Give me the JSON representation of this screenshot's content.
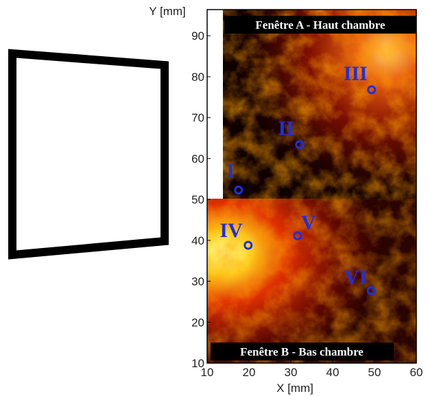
{
  "chart_data": {
    "type": "scatter",
    "x_label": "X [mm]",
    "y_label": "Y [mm]",
    "annotations": [
      "Fenêtre A - Haut chambre",
      "Fenêtre B - Bas chambre"
    ],
    "labels": [
      "I",
      "II",
      "III",
      "IV",
      "V",
      "VI"
    ],
    "x": [
      17.5,
      32.1,
      49.3,
      19.8,
      31.6,
      49.2
    ],
    "values": [
      52.3,
      63.4,
      76.8,
      38.8,
      41.1,
      27.7
    ],
    "color": "#1f2fe0",
    "xlim": [
      10,
      60
    ],
    "ylim": [
      10,
      96.4
    ],
    "xticks": [
      10,
      20,
      30,
      40,
      50,
      60
    ],
    "yticks": [
      10,
      20,
      30,
      40,
      50,
      60,
      70,
      80,
      90
    ]
  }
}
